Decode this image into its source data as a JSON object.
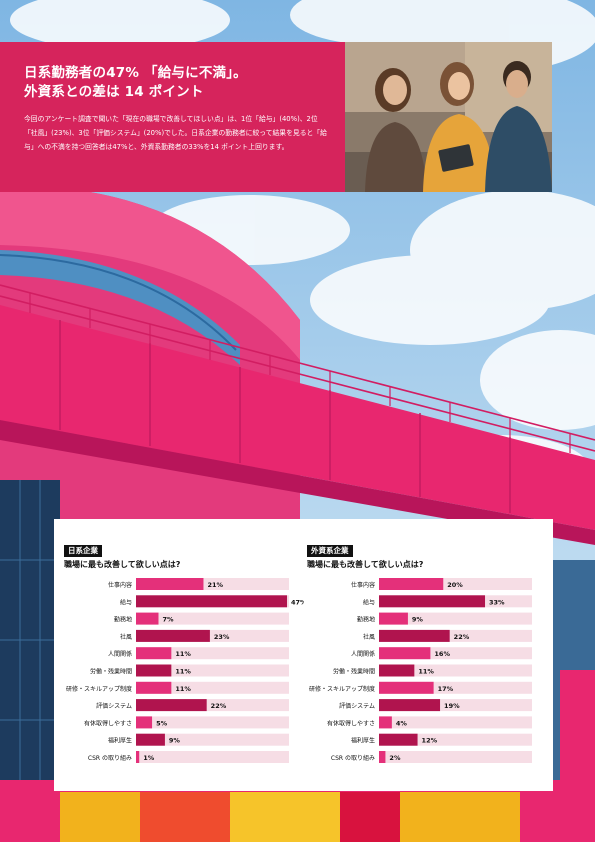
{
  "headline": {
    "line1": "日系勤務者の47% 「給与に不満」。",
    "line2": "外資系との差は 14 ポイント"
  },
  "lead": "今回のアンケート調査で聞いた「現在の職場で改善してほしい点」は、1位「給与」(40%)、2位「社風」(23%)、3位「評価システム」(20%)でした。日系企業の勤務者に絞って結果を見ると「給与」への不満を持つ回答者は47%と、外資系勤務者の33%を14 ポイント上回ります。",
  "colors": {
    "accent": "#d6245c",
    "bar_dark": "#b0144e",
    "bar_light": "#e4307a",
    "track": "#f6dde5"
  },
  "chart_data": [
    {
      "type": "bar",
      "tag": "日系企業",
      "title": "職場に最も改善して欲しい点は?",
      "categories": [
        "仕事内容",
        "給与",
        "勤務地",
        "社風",
        "人間関係",
        "労働・残業時間",
        "研修・スキルアップ制度",
        "評価システム",
        "有休取得しやすさ",
        "福利厚生",
        "CSR の取り組み"
      ],
      "values": [
        21,
        47,
        7,
        23,
        11,
        11,
        11,
        22,
        5,
        9,
        1
      ],
      "labels": [
        "21%",
        "47%",
        "7%",
        "23%",
        "11%",
        "11%",
        "11%",
        "22%",
        "5%",
        "9%",
        "1%"
      ],
      "xlim": [
        0,
        100
      ]
    },
    {
      "type": "bar",
      "tag": "外資系企業",
      "title": "職場に最も改善して欲しい点は?",
      "categories": [
        "仕事内容",
        "給与",
        "勤務地",
        "社風",
        "人間関係",
        "労働・残業時間",
        "研修・スキルアップ制度",
        "評価システム",
        "有休取得しやすさ",
        "福利厚生",
        "CSR の取り組み"
      ],
      "values": [
        20,
        33,
        9,
        22,
        16,
        11,
        17,
        19,
        4,
        12,
        2
      ],
      "labels": [
        "20%",
        "33%",
        "9%",
        "22%",
        "16%",
        "11%",
        "17%",
        "19%",
        "4%",
        "12%",
        "2%"
      ],
      "xlim": [
        0,
        100
      ]
    }
  ]
}
